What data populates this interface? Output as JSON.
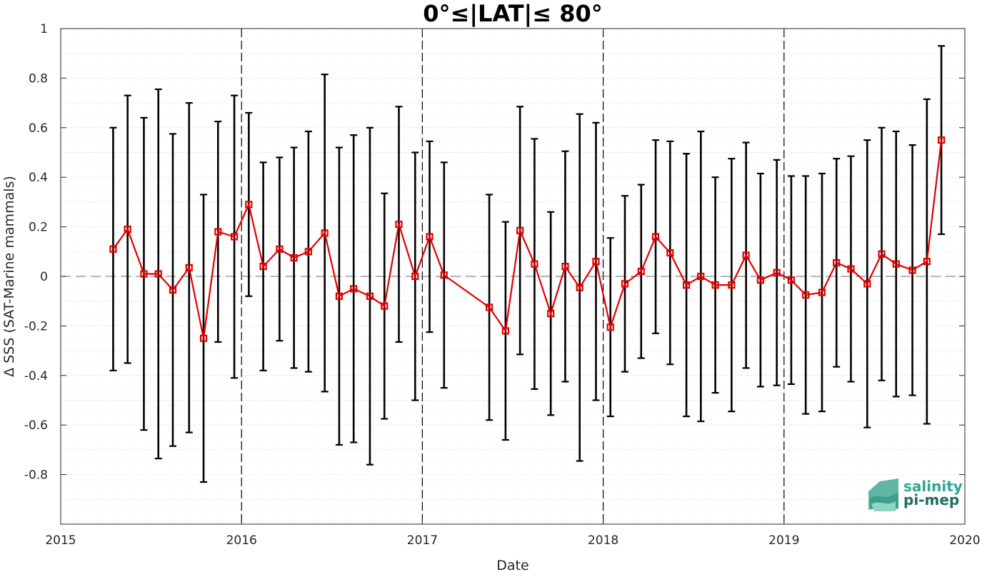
{
  "chart_data": {
    "type": "line",
    "title": "0°≤|LAT|≤ 80°",
    "xlabel": "Date",
    "ylabel": "Δ SSS (SAT-Marine mammals)",
    "xlim": [
      2015,
      2020
    ],
    "ylim": [
      -1,
      1
    ],
    "xticks": [
      "2015",
      "2016",
      "2017",
      "2018",
      "2019",
      "2020"
    ],
    "yticks": [
      "1",
      "0.8",
      "0.6",
      "0.4",
      "0.2",
      "0",
      "-0.2",
      "-0.4",
      "-0.6",
      "-0.8"
    ],
    "year_dividers": [
      2016,
      2017,
      2018,
      2019
    ],
    "zero_line": 0,
    "grid": true,
    "color_series": "#e00000",
    "color_errorbar": "#000000",
    "series": [
      {
        "x": [
          2015.29,
          2015.37,
          2015.46,
          2015.54,
          2015.62,
          2015.71,
          2015.79,
          2015.87,
          2015.96,
          2016.04,
          2016.12,
          2016.21,
          2016.29,
          2016.37,
          2016.46,
          2016.54,
          2016.62,
          2016.71,
          2016.79,
          2016.87,
          2016.96,
          2017.04,
          2017.12,
          2017.37,
          2017.46,
          2017.54,
          2017.62,
          2017.71,
          2017.79,
          2017.87,
          2017.96,
          2018.04,
          2018.12,
          2018.21,
          2018.29,
          2018.37,
          2018.46,
          2018.54,
          2018.62,
          2018.71,
          2018.79,
          2018.87,
          2018.96,
          2019.04,
          2019.12,
          2019.21,
          2019.29,
          2019.37,
          2019.46,
          2019.54,
          2019.62,
          2019.71,
          2019.79,
          2019.87
        ],
        "y": [
          0.11,
          0.19,
          0.01,
          0.01,
          -0.055,
          0.035,
          -0.25,
          0.18,
          0.16,
          0.29,
          0.04,
          0.11,
          0.075,
          0.1,
          0.175,
          -0.08,
          -0.05,
          -0.08,
          -0.12,
          0.21,
          0.0,
          0.16,
          0.005,
          -0.125,
          -0.22,
          0.185,
          0.05,
          -0.15,
          0.04,
          -0.045,
          0.06,
          -0.205,
          -0.03,
          0.02,
          0.16,
          0.095,
          -0.035,
          0.0,
          -0.035,
          -0.035,
          0.085,
          -0.015,
          0.015,
          -0.015,
          -0.075,
          -0.065,
          0.055,
          0.03,
          -0.03,
          0.09,
          0.05,
          0.025,
          0.06,
          0.55
        ],
        "err": [
          0.49,
          0.54,
          0.63,
          0.745,
          0.63,
          0.665,
          0.58,
          0.445,
          0.57,
          0.37,
          0.42,
          0.37,
          0.445,
          0.485,
          0.64,
          0.6,
          0.62,
          0.68,
          0.455,
          0.475,
          0.5,
          0.385,
          0.455,
          0.455,
          0.44,
          0.5,
          0.505,
          0.41,
          0.465,
          0.7,
          0.56,
          0.36,
          0.355,
          0.35,
          0.39,
          0.45,
          0.53,
          0.585,
          0.435,
          0.51,
          0.455,
          0.43,
          0.455,
          0.42,
          0.48,
          0.48,
          0.42,
          0.455,
          0.58,
          0.51,
          0.535,
          0.505,
          0.655,
          0.38
        ]
      }
    ]
  },
  "logo": {
    "line1": "salinity",
    "line2": "pi-mep"
  }
}
